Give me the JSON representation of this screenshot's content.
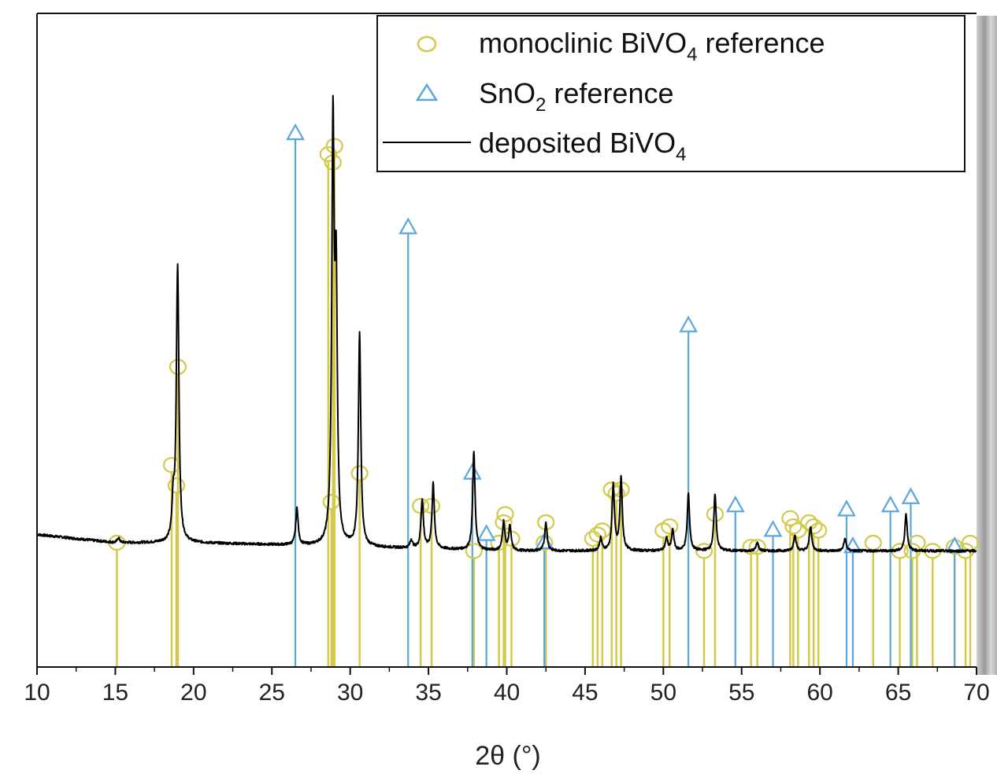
{
  "chart_data": {
    "type": "line",
    "xlabel": "2θ (°)",
    "ylabel": "",
    "xlim": [
      10,
      70
    ],
    "x_ticks": [
      "10",
      "15",
      "20",
      "25",
      "30",
      "35",
      "40",
      "45",
      "50",
      "55",
      "60",
      "65",
      "70"
    ],
    "y_ticks_shown": false,
    "grid": false,
    "legend_position": "top-right",
    "legend": [
      {
        "marker": "circle",
        "label_main": "monoclinic BiVO",
        "label_sub": "4",
        "label_tail": " reference",
        "color": "#d4c94a"
      },
      {
        "marker": "triangle",
        "label_main": "SnO",
        "label_sub": "2",
        "label_tail": " reference",
        "color": "#5aa7de"
      },
      {
        "marker": "line",
        "label_main": "deposited BiVO",
        "label_sub": "4",
        "label_tail": "",
        "color": "#000000"
      }
    ],
    "series": [
      {
        "name": "deposited BiVO4",
        "color": "#000000",
        "baseline": 0.0,
        "background": [
          [
            10,
            0.02
          ],
          [
            15,
            0.0
          ],
          [
            20,
            0.0
          ],
          [
            30,
            -0.01
          ],
          [
            40,
            -0.02
          ],
          [
            50,
            -0.02
          ],
          [
            60,
            -0.02
          ],
          [
            70,
            -0.02
          ]
        ],
        "peaks": [
          [
            15.2,
            0.012
          ],
          [
            18.7,
            0.09
          ],
          [
            18.95,
            0.3
          ],
          [
            19.0,
            0.42
          ],
          [
            26.6,
            0.09
          ],
          [
            28.9,
            1.0
          ],
          [
            29.1,
            0.6
          ],
          [
            30.6,
            0.52
          ],
          [
            33.9,
            0.02
          ],
          [
            34.6,
            0.12
          ],
          [
            35.3,
            0.16
          ],
          [
            37.9,
            0.24
          ],
          [
            39.8,
            0.07
          ],
          [
            40.2,
            0.06
          ],
          [
            42.5,
            0.07
          ],
          [
            46.0,
            0.03
          ],
          [
            46.8,
            0.16
          ],
          [
            47.3,
            0.18
          ],
          [
            50.2,
            0.03
          ],
          [
            50.6,
            0.05
          ],
          [
            51.6,
            0.14
          ],
          [
            53.3,
            0.14
          ],
          [
            56.0,
            0.02
          ],
          [
            58.4,
            0.04
          ],
          [
            59.4,
            0.06
          ],
          [
            61.6,
            0.03
          ],
          [
            65.5,
            0.09
          ]
        ]
      },
      {
        "name": "monoclinic BiVO4 reference",
        "color": "#d4c94a",
        "sticks": [
          [
            15.1,
            0.0
          ],
          [
            18.6,
            0.19
          ],
          [
            18.9,
            0.14
          ],
          [
            19.0,
            0.43
          ],
          [
            28.6,
            0.95
          ],
          [
            28.9,
            0.93
          ],
          [
            29.0,
            0.97
          ],
          [
            28.8,
            0.1
          ],
          [
            30.6,
            0.17
          ],
          [
            34.5,
            0.09
          ],
          [
            35.2,
            0.09
          ],
          [
            37.9,
            -0.02
          ],
          [
            39.5,
            0.0
          ],
          [
            39.8,
            0.05
          ],
          [
            39.9,
            0.07
          ],
          [
            40.3,
            0.01
          ],
          [
            42.4,
            0.0
          ],
          [
            42.5,
            0.05
          ],
          [
            45.5,
            0.01
          ],
          [
            45.8,
            0.02
          ],
          [
            46.1,
            0.03
          ],
          [
            46.7,
            0.13
          ],
          [
            47.0,
            0.12
          ],
          [
            47.3,
            0.13
          ],
          [
            50.0,
            0.03
          ],
          [
            50.4,
            0.04
          ],
          [
            52.6,
            -0.02
          ],
          [
            53.3,
            0.07
          ],
          [
            55.6,
            -0.01
          ],
          [
            56.0,
            -0.01
          ],
          [
            58.1,
            0.06
          ],
          [
            58.3,
            0.04
          ],
          [
            58.6,
            0.03
          ],
          [
            59.3,
            0.05
          ],
          [
            59.6,
            0.04
          ],
          [
            59.9,
            0.03
          ],
          [
            63.4,
            0.0
          ],
          [
            65.1,
            -0.02
          ],
          [
            65.9,
            -0.02
          ],
          [
            66.2,
            0.0
          ],
          [
            67.2,
            -0.02
          ],
          [
            68.6,
            -0.01
          ],
          [
            69.3,
            -0.02
          ],
          [
            69.6,
            0.0
          ]
        ]
      },
      {
        "name": "SnO2 reference",
        "color": "#5aa7de",
        "sticks": [
          [
            26.5,
            1.0
          ],
          [
            33.7,
            0.77
          ],
          [
            37.8,
            0.17
          ],
          [
            38.7,
            0.02
          ],
          [
            42.4,
            0.0
          ],
          [
            51.6,
            0.53
          ],
          [
            54.6,
            0.09
          ],
          [
            57.0,
            0.03
          ],
          [
            61.7,
            0.08
          ],
          [
            62.1,
            -0.01
          ],
          [
            64.5,
            0.09
          ],
          [
            65.8,
            0.11
          ],
          [
            68.6,
            -0.01
          ]
        ]
      }
    ]
  }
}
